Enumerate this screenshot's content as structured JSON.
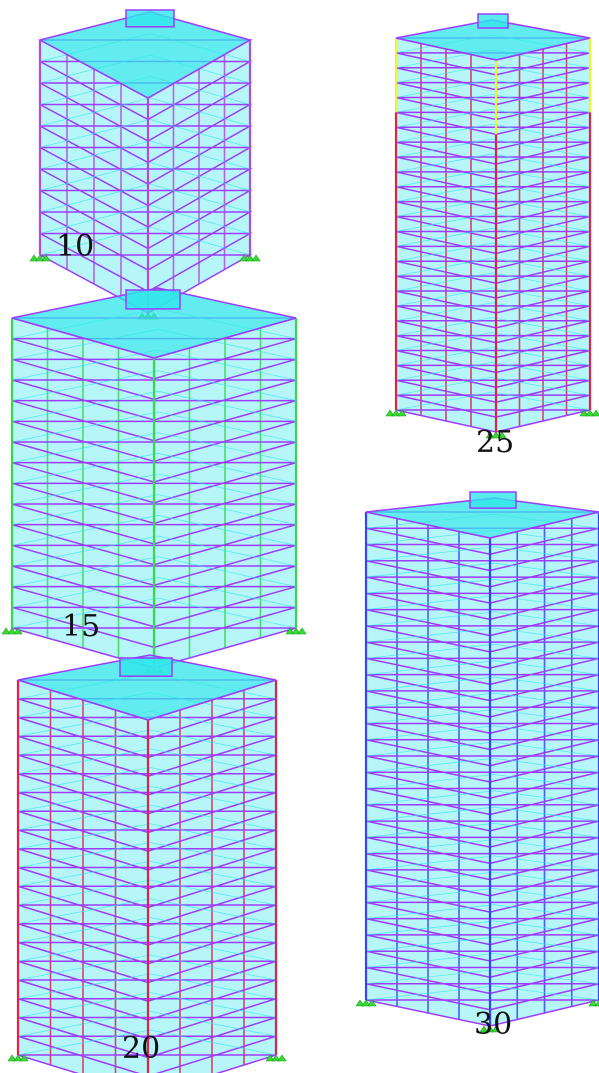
{
  "colors": {
    "slab": "#2fe6ea",
    "frame": "#9b3cff",
    "support": "#33dd33"
  },
  "buildings": [
    {
      "id": "b10",
      "label": "10",
      "stories": 10,
      "column_color": "#b64ad8",
      "upper_color": null,
      "upper_from": null
    },
    {
      "id": "b15",
      "label": "15",
      "stories": 15,
      "column_color": "#35d94a",
      "upper_color": null,
      "upper_from": null
    },
    {
      "id": "b20",
      "label": "20",
      "stories": 20,
      "column_color": "#e0224a",
      "upper_color": null,
      "upper_from": null
    },
    {
      "id": "b25",
      "label": "25",
      "stories": 25,
      "column_color": "#e0224a",
      "upper_color": "#f4ef33",
      "upper_from": 20
    },
    {
      "id": "b30",
      "label": "30",
      "stories": 30,
      "column_color": "#3344ff",
      "upper_color": null,
      "upper_from": null
    }
  ]
}
